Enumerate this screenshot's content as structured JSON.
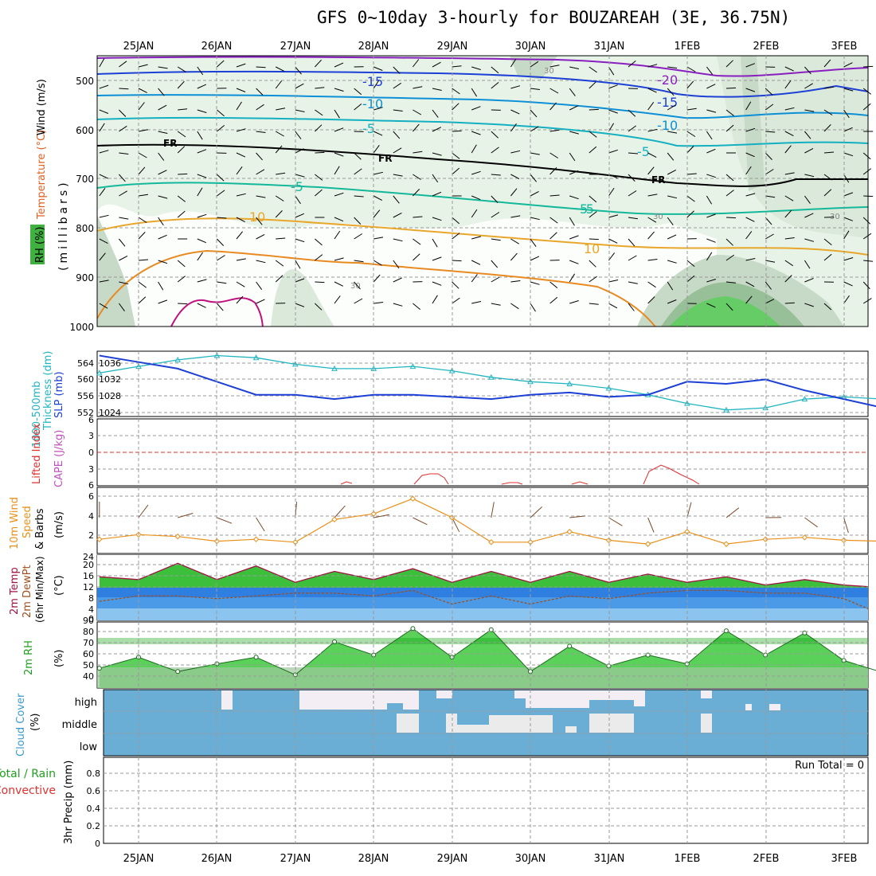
{
  "title": "GFS 0~10day 3-hourly for BOUZAREAH (3E, 36.75N)",
  "date_labels": [
    "25JAN",
    "26JAN",
    "27JAN",
    "28JAN",
    "29JAN",
    "30JAN",
    "31JAN",
    "1FEB",
    "2FEB",
    "3FEB"
  ],
  "panels": {
    "upper": {
      "ylabel_wind": "Wind (m/s)",
      "ylabel_temp": "Temperature (°C)",
      "ylabel_rh": "RH (%)",
      "ylabel_p": "(millibars)",
      "yticks": [
        "500",
        "600",
        "700",
        "800",
        "900",
        "1000"
      ],
      "contour_labels": [
        "-15",
        "-10",
        "-5",
        "FR",
        "FR",
        "FR",
        "-5",
        "-20",
        "-15",
        "-10",
        "-5",
        "-5",
        "10",
        "10",
        "5",
        "30",
        "30",
        "30",
        "30"
      ]
    },
    "thickness": {
      "ylabel1": "1000-500mb",
      "ylabel2": "Thickness (dm)",
      "ylabel3": "SLP (mb)",
      "left_ticks": [
        "564",
        "560",
        "556",
        "552"
      ],
      "right_ticks": [
        "1036",
        "1032",
        "1028",
        "1024"
      ]
    },
    "cape": {
      "ylabel1": "Lifted Index",
      "ylabel2": "CAPE (J/kg)",
      "left_ticks": [
        "6",
        "3",
        "0",
        "3",
        "6"
      ]
    },
    "wind10": {
      "ylabel1": "10m Wind",
      "ylabel2": "Speed",
      "ylabel3": "& Barbs",
      "ylabel4": "(m/s)",
      "yticks": [
        "6",
        "4",
        "2"
      ]
    },
    "temp2m": {
      "ylabel1": "2m Temp",
      "ylabel2": "2m DewPt",
      "ylabel3": "(6hr Min/Max)",
      "ylabel4": "(°C)",
      "yticks": [
        "24",
        "20",
        "16",
        "12",
        "8",
        "4",
        "0"
      ]
    },
    "rh2m": {
      "ylabel1": "2m RH",
      "ylabel2": "(%)",
      "yticks": [
        "90",
        "80",
        "70",
        "60",
        "50",
        "40"
      ]
    },
    "cloud": {
      "ylabel1": "Cloud Cover",
      "ylabel2": "(%)",
      "levels": [
        "high",
        "middle",
        "low"
      ]
    },
    "precip": {
      "ylabel1": "3hr Precip (mm)",
      "ylabel2": "Total / Rain",
      "ylabel3": "Convective",
      "run_total": "Run Total = 0",
      "yticks": [
        "0.8",
        "0.6",
        "0.4",
        "0.2",
        "0"
      ]
    }
  },
  "chart_data": [
    {
      "type": "line",
      "title": "1000-500mb Thickness (dm) / SLP (mb)",
      "x": [
        "24JAN12",
        "25JAN00",
        "25JAN12",
        "26JAN00",
        "26JAN12",
        "27JAN00",
        "27JAN12",
        "28JAN00",
        "28JAN12",
        "29JAN00",
        "29JAN12",
        "30JAN00",
        "30JAN12",
        "31JAN00",
        "31JAN12",
        "1FEB00",
        "1FEB12",
        "2FEB00",
        "2FEB12",
        "3FEB00",
        "3FEB06"
      ],
      "series": [
        {
          "name": "1000-500mb Thickness (dm)",
          "values": [
            561,
            562.5,
            564,
            565,
            564.5,
            563,
            562,
            562,
            562.5,
            561.5,
            560,
            559,
            558.5,
            557.5,
            556,
            554,
            552.5,
            553,
            555,
            555.5,
            555
          ]
        },
        {
          "name": "SLP (mb)",
          "values": [
            1036,
            1034.5,
            1033,
            1030,
            1027,
            1027,
            1026,
            1027,
            1027,
            1026.5,
            1026,
            1027,
            1027.5,
            1026.5,
            1027,
            1030,
            1029.5,
            1030.5,
            1028,
            1026,
            1024
          ]
        }
      ],
      "ylim_thickness": [
        551,
        566
      ],
      "ylim_slp": [
        1022,
        1037
      ]
    },
    {
      "type": "line",
      "title": "10m Wind Speed (m/s)",
      "x": [
        "24JAN12",
        "25JAN00",
        "25JAN12",
        "26JAN00",
        "26JAN12",
        "27JAN00",
        "27JAN12",
        "28JAN00",
        "28JAN12",
        "29JAN00",
        "29JAN12",
        "30JAN00",
        "30JAN12",
        "31JAN00",
        "31JAN12",
        "1FEB00",
        "1FEB12",
        "2FEB00",
        "2FEB12",
        "3FEB00",
        "3FEB06"
      ],
      "series": [
        {
          "name": "10m Wind Speed",
          "values": [
            1.5,
            2,
            1.8,
            1.3,
            1.5,
            1.2,
            3.6,
            4.2,
            5.8,
            3.8,
            1.2,
            1.2,
            2.3,
            1.4,
            1,
            2.3,
            1,
            1.5,
            1.7,
            1.4,
            1.3
          ]
        }
      ],
      "ylim": [
        0,
        7
      ]
    },
    {
      "type": "area",
      "title": "2m Temp / 2m DewPt (°C)",
      "x": [
        "24JAN12",
        "25JAN00",
        "25JAN12",
        "26JAN00",
        "26JAN12",
        "27JAN00",
        "27JAN12",
        "28JAN00",
        "28JAN12",
        "29JAN00",
        "29JAN12",
        "30JAN00",
        "30JAN12",
        "31JAN00",
        "31JAN12",
        "1FEB00",
        "1FEB12",
        "2FEB00",
        "2FEB12",
        "3FEB00",
        "3FEB06"
      ],
      "series": [
        {
          "name": "2m Temp",
          "values": [
            16,
            15,
            21,
            15,
            20,
            14,
            18,
            15,
            19,
            14,
            18,
            14,
            18,
            14,
            17,
            14,
            16,
            13,
            15,
            13,
            12
          ]
        },
        {
          "name": "2m DewPt",
          "values": [
            7,
            9,
            9,
            8,
            9,
            10,
            10,
            9,
            11,
            6,
            9,
            6,
            9,
            8,
            10,
            11,
            11,
            10,
            10,
            8,
            2
          ]
        }
      ],
      "ylim": [
        0,
        24
      ]
    },
    {
      "type": "area",
      "title": "2m RH (%)",
      "x": [
        "24JAN12",
        "25JAN00",
        "25JAN12",
        "26JAN00",
        "26JAN12",
        "27JAN00",
        "27JAN12",
        "28JAN00",
        "28JAN12",
        "29JAN00",
        "29JAN12",
        "30JAN00",
        "30JAN12",
        "31JAN00",
        "31JAN12",
        "1FEB00",
        "1FEB12",
        "2FEB00",
        "2FEB12",
        "3FEB00",
        "3FEB06"
      ],
      "series": [
        {
          "name": "2m RH",
          "values": [
            48,
            58,
            45,
            52,
            58,
            42,
            72,
            60,
            84,
            58,
            83,
            45,
            68,
            50,
            60,
            52,
            82,
            60,
            80,
            55,
            44
          ]
        }
      ],
      "ylim": [
        30,
        90
      ]
    },
    {
      "type": "bar",
      "title": "3hr Precip (mm)",
      "categories": [
        "25JAN",
        "26JAN",
        "27JAN",
        "28JAN",
        "29JAN",
        "30JAN",
        "31JAN",
        "1FEB",
        "2FEB",
        "3FEB"
      ],
      "values": [
        0,
        0,
        0,
        0,
        0,
        0,
        0,
        0,
        0,
        0
      ],
      "ylim": [
        0,
        0.9
      ]
    }
  ]
}
